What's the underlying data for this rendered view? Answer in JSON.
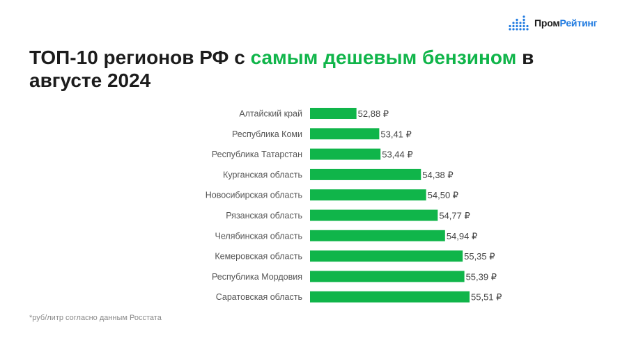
{
  "brand": {
    "part1": "Пром",
    "part2": "Рейтинг",
    "accent": "#1f7ae0"
  },
  "title": {
    "before": "ТОП-10 регионов РФ с ",
    "highlight": "самым дешевым бензином",
    "after": " в августе 2024",
    "highlight_color": "#10b54a"
  },
  "footnote": "*руб/литр согласно данным Росстата",
  "chart_data": {
    "type": "bar",
    "orientation": "horizontal",
    "title": "ТОП-10 регионов РФ с самым дешевым бензином в августе 2024",
    "categories": [
      "Алтайский край",
      "Республика Коми",
      "Республика Татарстан",
      "Курганская область",
      "Новосибирская область",
      "Рязанская область",
      "Челябинская область",
      "Кемеровская область",
      "Республика Мордовия",
      "Саратовская область"
    ],
    "values": [
      52.88,
      53.41,
      53.44,
      54.38,
      54.5,
      54.77,
      54.94,
      55.35,
      55.39,
      55.51
    ],
    "value_labels": [
      "52,88 ₽",
      "53,41 ₽",
      "53,44 ₽",
      "54,38 ₽",
      "54,50 ₽",
      "54,77 ₽",
      "54,94 ₽",
      "55,35 ₽",
      "55,39 ₽",
      "55,51 ₽"
    ],
    "bar_color": "#10b54a",
    "axis_visible": false,
    "grid": false
  }
}
